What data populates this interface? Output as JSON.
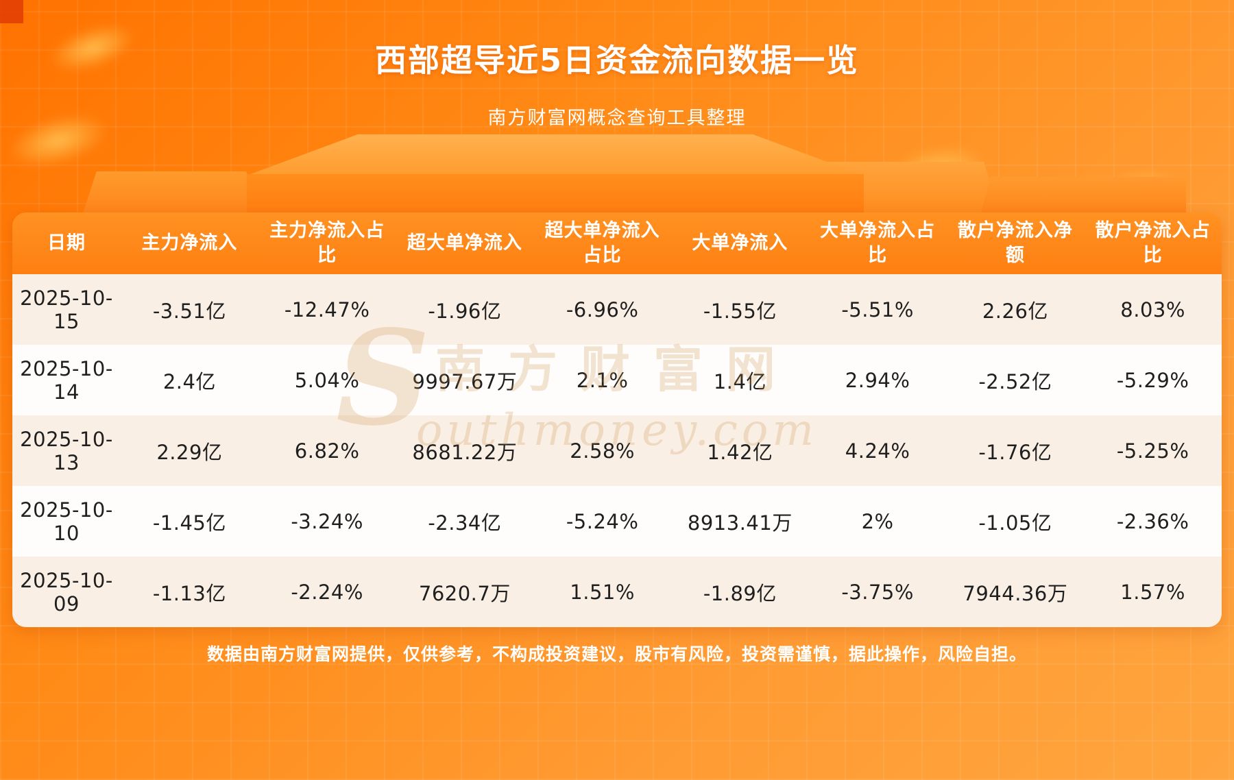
{
  "page": {
    "title": "西部超导近5日资金流向数据一览",
    "subtitle": "南方财富网概念查询工具整理",
    "footer": "数据由南方财富网提供，仅供参考，不构成投资建议，股市有风险，投资需谨慎，据此操作，风险自担。"
  },
  "watermark": {
    "cn": "南方财富网",
    "en": "outhmoney.com",
    "initial": "S"
  },
  "chart_data": {
    "type": "table",
    "title": "西部超导近5日资金流向数据一览",
    "columns": [
      "日期",
      "主力净流入",
      "主力净流入占比",
      "超大单净流入",
      "超大单净流入占比",
      "大单净流入",
      "大单净流入占比",
      "散户净流入净额",
      "散户净流入占比"
    ],
    "rows": [
      [
        "2025-10-15",
        "-3.51亿",
        "-12.47%",
        "-1.96亿",
        "-6.96%",
        "-1.55亿",
        "-5.51%",
        "2.26亿",
        "8.03%"
      ],
      [
        "2025-10-14",
        "2.4亿",
        "5.04%",
        "9997.67万",
        "2.1%",
        "1.4亿",
        "2.94%",
        "-2.52亿",
        "-5.29%"
      ],
      [
        "2025-10-13",
        "2.29亿",
        "6.82%",
        "8681.22万",
        "2.58%",
        "1.42亿",
        "4.24%",
        "-1.76亿",
        "-5.25%"
      ],
      [
        "2025-10-10",
        "-1.45亿",
        "-3.24%",
        "-2.34亿",
        "-5.24%",
        "8913.41万",
        "2%",
        "-1.05亿",
        "-2.36%"
      ],
      [
        "2025-10-09",
        "-1.13亿",
        "-2.24%",
        "7620.7万",
        "1.51%",
        "-1.89亿",
        "-3.75%",
        "7944.36万",
        "1.57%"
      ]
    ]
  },
  "colors": {
    "background_top": "#ff7200",
    "background_bottom": "#ffa53e",
    "header_row_bg": "#ff8a1a",
    "row_odd_bg": "#f9efe4",
    "row_even_bg": "#fffdfb",
    "table_text": "#1f1f1f",
    "title_text": "#ffffff"
  }
}
